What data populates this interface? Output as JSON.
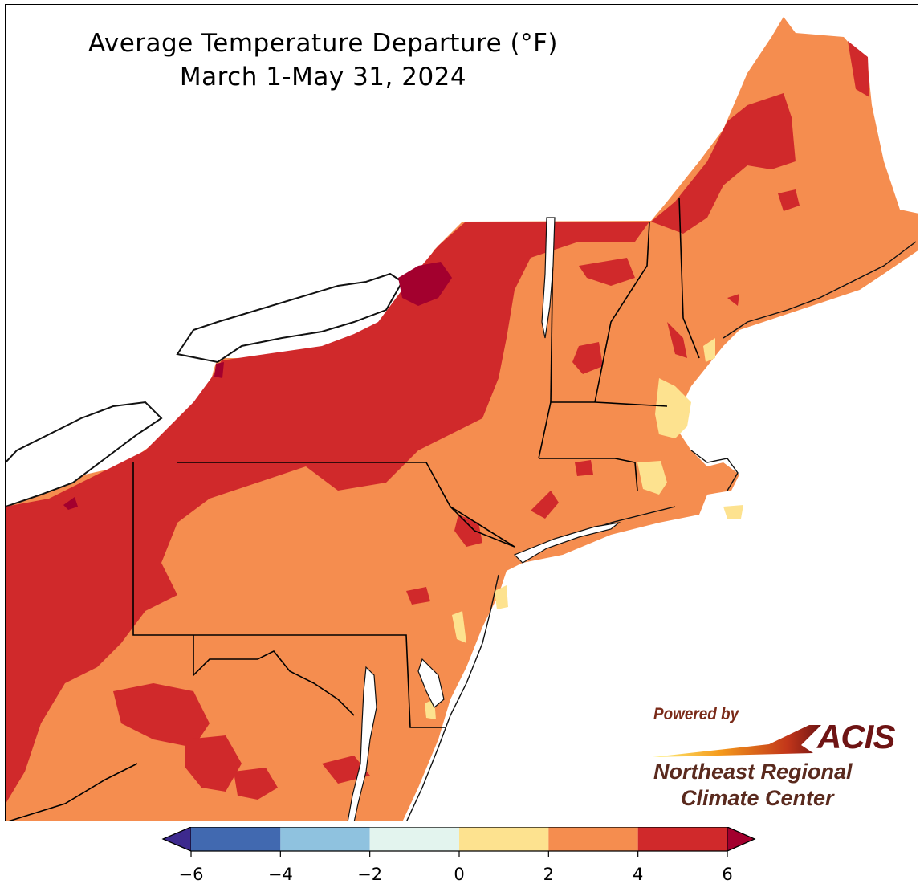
{
  "title": {
    "line1": "Average Temperature Departure (°F)",
    "line2": "March 1-May 31, 2024"
  },
  "legend": {
    "ticks": [
      "−6",
      "−4",
      "−2",
      "0",
      "2",
      "4",
      "6"
    ],
    "tick_values": [
      -6,
      -4,
      -2,
      0,
      2,
      4,
      6
    ],
    "bins": [
      {
        "from": -6,
        "to": -4,
        "color": "#4169b0"
      },
      {
        "from": -4,
        "to": -2,
        "color": "#8fc2df"
      },
      {
        "from": -2,
        "to": 0,
        "color": "#e3f4ee"
      },
      {
        "from": 0,
        "to": 2,
        "color": "#fde28f"
      },
      {
        "from": 2,
        "to": 4,
        "color": "#f58d4f"
      },
      {
        "from": 4,
        "to": 6,
        "color": "#d0292b"
      }
    ],
    "under_color": "#3d2a8e",
    "over_color": "#a3002e"
  },
  "map_colors": {
    "water": "#ffffff",
    "range_0_2": "#fde28f",
    "range_2_4": "#f58d4f",
    "range_4_6": "#d0292b",
    "above_6": "#a3002e",
    "border": "#000000",
    "county": "#b26a45"
  },
  "logo": {
    "powered_by": "Powered by",
    "acis": "ACIS",
    "org_line1": "Northeast Regional",
    "org_line2": "Climate Center"
  }
}
